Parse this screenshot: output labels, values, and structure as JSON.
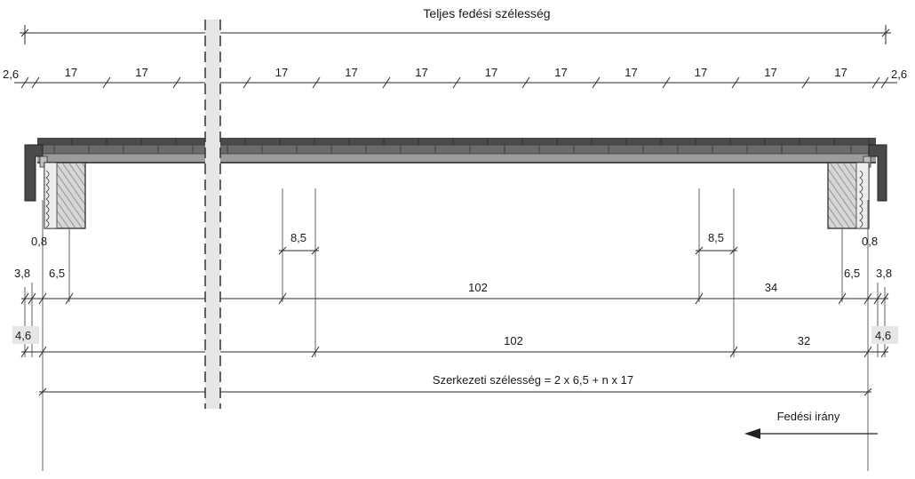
{
  "title": "Teljes fedési szélesség",
  "top_row": {
    "left_edge": "2,6",
    "right_edge": "2,6",
    "spacing": [
      "17",
      "17",
      "17",
      "17",
      "17",
      "17",
      "17",
      "17",
      "17",
      "17",
      "17"
    ]
  },
  "middle_marks": {
    "left_overlap": "8,5",
    "right_overlap": "8,5"
  },
  "left_labels": {
    "a": "0,8",
    "b": "3,8",
    "c": "6,5",
    "d": "4,6"
  },
  "right_labels": {
    "a": "0,8",
    "b": "3,8",
    "c": "6,5",
    "d": "4,6"
  },
  "row1": {
    "main": "102",
    "end": "34"
  },
  "row2": {
    "main": "102",
    "end": "32"
  },
  "structural_width": "Szerkezeti szélesség = 2 x 6,5 + n x 17",
  "direction_label": "Fedési irány",
  "colors": {
    "sheet_dark": "#4a4a4a",
    "sheet_mid": "#8c8c8c",
    "timber": "#d8d8d8",
    "break": "#e6e6e6"
  }
}
